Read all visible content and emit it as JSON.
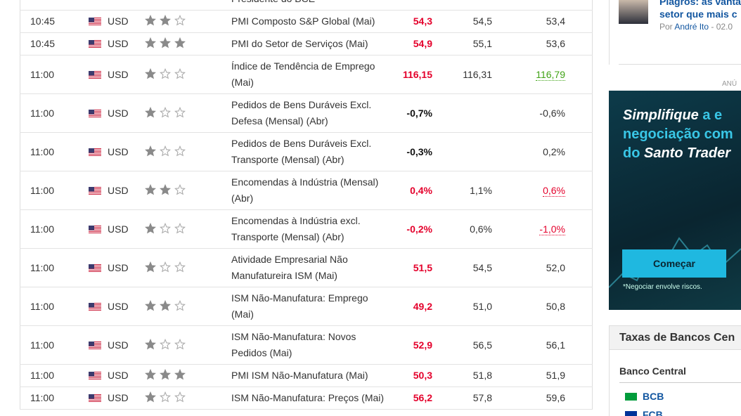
{
  "calendar": {
    "partial_row": {
      "event": "Presidente do BCE"
    },
    "rows": [
      {
        "time": "10:45",
        "currency": "USD",
        "importance": 2,
        "event": "PMI Composto S&P Global (Mai)",
        "actual": "54,3",
        "actual_color": "#e4002b",
        "forecast": "54,5",
        "previous": "53,4",
        "previous_color": "#333333"
      },
      {
        "time": "10:45",
        "currency": "USD",
        "importance": 3,
        "event": "PMI do Setor de Serviços (Mai)",
        "actual": "54,9",
        "actual_color": "#e4002b",
        "forecast": "55,1",
        "previous": "53,6",
        "previous_color": "#333333"
      },
      {
        "time": "11:00",
        "currency": "USD",
        "importance": 1,
        "event": "Índice de Tendência de Emprego (Mai)",
        "actual": "116,15",
        "actual_color": "#e4002b",
        "forecast": "116,31",
        "previous": "116,79",
        "previous_color": "#41a316"
      },
      {
        "time": "11:00",
        "currency": "USD",
        "importance": 1,
        "event": "Pedidos de Bens Duráveis Excl. Defesa (Mensal) (Abr)",
        "actual": "-0,7%",
        "actual_color": "#111111",
        "forecast": "",
        "previous": "-0,6%",
        "previous_color": "#333333"
      },
      {
        "time": "11:00",
        "currency": "USD",
        "importance": 1,
        "event": "Pedidos de Bens Duráveis Excl. Transporte (Mensal) (Abr)",
        "actual": "-0,3%",
        "actual_color": "#111111",
        "forecast": "",
        "previous": "0,2%",
        "previous_color": "#333333"
      },
      {
        "time": "11:00",
        "currency": "USD",
        "importance": 2,
        "event": "Encomendas à Indústria (Mensal) (Abr)",
        "actual": "0,4%",
        "actual_color": "#e4002b",
        "forecast": "1,1%",
        "previous": "0,6%",
        "previous_color": "#e4002b"
      },
      {
        "time": "11:00",
        "currency": "USD",
        "importance": 1,
        "event": "Encomendas à Indústria excl. Transporte (Mensal) (Abr)",
        "actual": "-0,2%",
        "actual_color": "#e4002b",
        "forecast": "0,6%",
        "previous": "-1,0%",
        "previous_color": "#e4002b"
      },
      {
        "time": "11:00",
        "currency": "USD",
        "importance": 1,
        "event": "Atividade Empresarial Não Manufatureira ISM (Mai)",
        "actual": "51,5",
        "actual_color": "#e4002b",
        "forecast": "54,5",
        "previous": "52,0",
        "previous_color": "#333333"
      },
      {
        "time": "11:00",
        "currency": "USD",
        "importance": 2,
        "event": "ISM Não-Manufatura: Emprego (Mai)",
        "actual": "49,2",
        "actual_color": "#e4002b",
        "forecast": "51,0",
        "previous": "50,8",
        "previous_color": "#333333"
      },
      {
        "time": "11:00",
        "currency": "USD",
        "importance": 1,
        "event": "ISM Não-Manufatura: Novos Pedidos (Mai)",
        "actual": "52,9",
        "actual_color": "#e4002b",
        "forecast": "56,5",
        "previous": "56,1",
        "previous_color": "#333333"
      },
      {
        "time": "11:00",
        "currency": "USD",
        "importance": 3,
        "event": "PMI ISM Não-Manufatura (Mai)",
        "actual": "50,3",
        "actual_color": "#e4002b",
        "forecast": "51,8",
        "previous": "51,9",
        "previous_color": "#333333"
      },
      {
        "time": "11:00",
        "currency": "USD",
        "importance": 1,
        "event": "ISM Não-Manufatura: Preços (Mai)",
        "actual": "56,2",
        "actual_color": "#e4002b",
        "forecast": "57,8",
        "previous": "59,6",
        "previous_color": "#333333"
      }
    ]
  },
  "sidebar": {
    "news": {
      "title_line1": "Plagros: as vanta",
      "title_line2": "setor que mais c",
      "byline_prefix": "Por",
      "author": "André Ito",
      "date": "- 02.0"
    },
    "ad_label": "ANÚ",
    "ad": {
      "line1a": "Simplifique",
      "line1b": "a e",
      "line2": "negociação com",
      "line3a": "do",
      "line3b": "Santo Trader",
      "button": "Começar",
      "disclaimer": "*Negociar envolve riscos."
    },
    "banks": {
      "title": "Taxas de Bancos Cen",
      "header": "Banco Central",
      "items": [
        "BCB",
        "FCB"
      ]
    }
  }
}
